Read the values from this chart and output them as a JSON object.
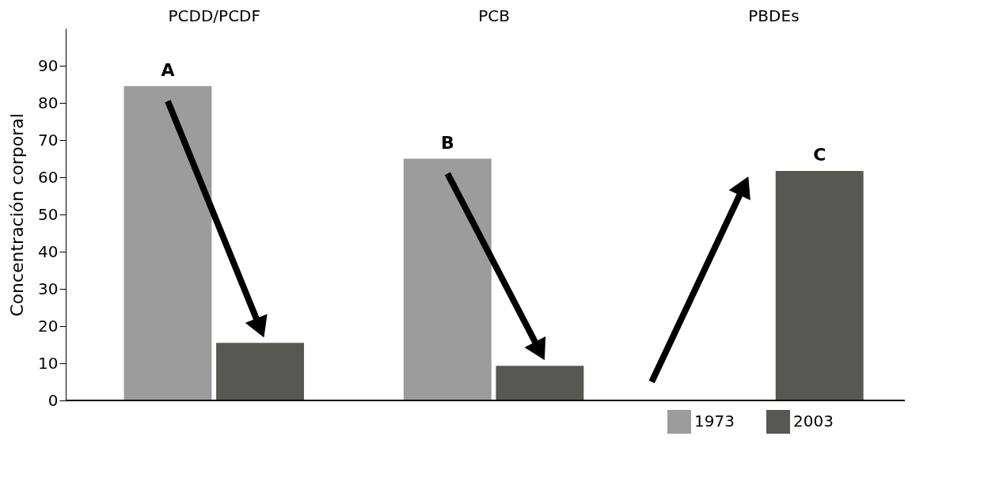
{
  "chart_data": {
    "type": "bar",
    "categories": [
      "PCDD/PCDF",
      "PCB",
      "PBDEs"
    ],
    "series": [
      {
        "name": "1973",
        "color": "#9c9c9c",
        "values": [
          84.5,
          65,
          null
        ]
      },
      {
        "name": "2003",
        "color": "#575853",
        "values": [
          15.5,
          9.3,
          61.7
        ]
      }
    ],
    "ylabel": "Concentración corporal",
    "ylim": [
      0,
      100
    ],
    "yticks": [
      0,
      10,
      20,
      30,
      40,
      50,
      60,
      70,
      80,
      90
    ],
    "annotations": [
      "A",
      "B",
      "C"
    ],
    "grid": false,
    "legend": "bottom right"
  }
}
